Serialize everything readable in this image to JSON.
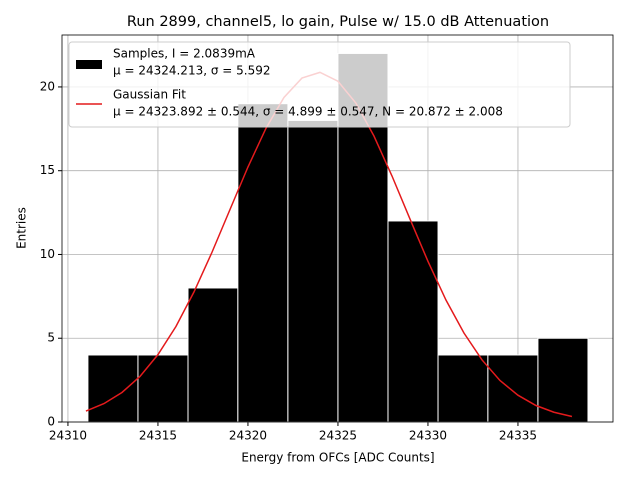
{
  "chart_data": {
    "type": "histogram",
    "title": "Run 2899, channel5, lo gain, Pulse w/ 15.0 dB Attenuation",
    "xlabel": "Energy from OFCs [ADC Counts]",
    "ylabel": "Entries",
    "name": "Samples, I = 2.0839mA",
    "stats": "μ = 24324.213, σ = 5.592",
    "color": "#000000",
    "bins": [
      24311.11,
      24313.89,
      24316.67,
      24319.44,
      24322.22,
      24325.0,
      24327.78,
      24330.56,
      24333.33,
      24336.11,
      24338.89
    ],
    "values": [
      4,
      4,
      8,
      19,
      18,
      22,
      12,
      4,
      4,
      5
    ],
    "fit": {
      "type": "line",
      "name": "Gaussian Fit",
      "stats": "μ = 24323.892 ± 0.544, σ = 4.899 ± 0.547, N = 20.872 ± 2.008",
      "color": "#e41a1c",
      "x": [
        24311,
        24312,
        24313,
        24314,
        24315,
        24316,
        24317,
        24318,
        24319,
        24320,
        24321,
        24322,
        24323,
        24324,
        24325,
        24326,
        24327,
        24328,
        24329,
        24330,
        24331,
        24332,
        24333,
        24334,
        24335,
        24336,
        24337,
        24338
      ],
      "values": [
        0.654,
        1.097,
        1.762,
        2.717,
        4.02,
        5.702,
        7.758,
        10.125,
        12.677,
        15.22,
        17.53,
        19.37,
        20.53,
        20.87,
        20.34,
        19.03,
        17.07,
        14.69,
        12.12,
        9.59,
        7.28,
        5.31,
        3.71,
        2.48,
        1.6,
        0.984,
        0.582,
        0.33
      ]
    },
    "xlim": [
      24309.67,
      24340.28
    ],
    "xticks": [
      24310,
      24315,
      24320,
      24325,
      24330,
      24335
    ],
    "ylim": [
      0,
      23.1
    ],
    "yticks": [
      0,
      5,
      10,
      15,
      20
    ],
    "grid": true
  }
}
